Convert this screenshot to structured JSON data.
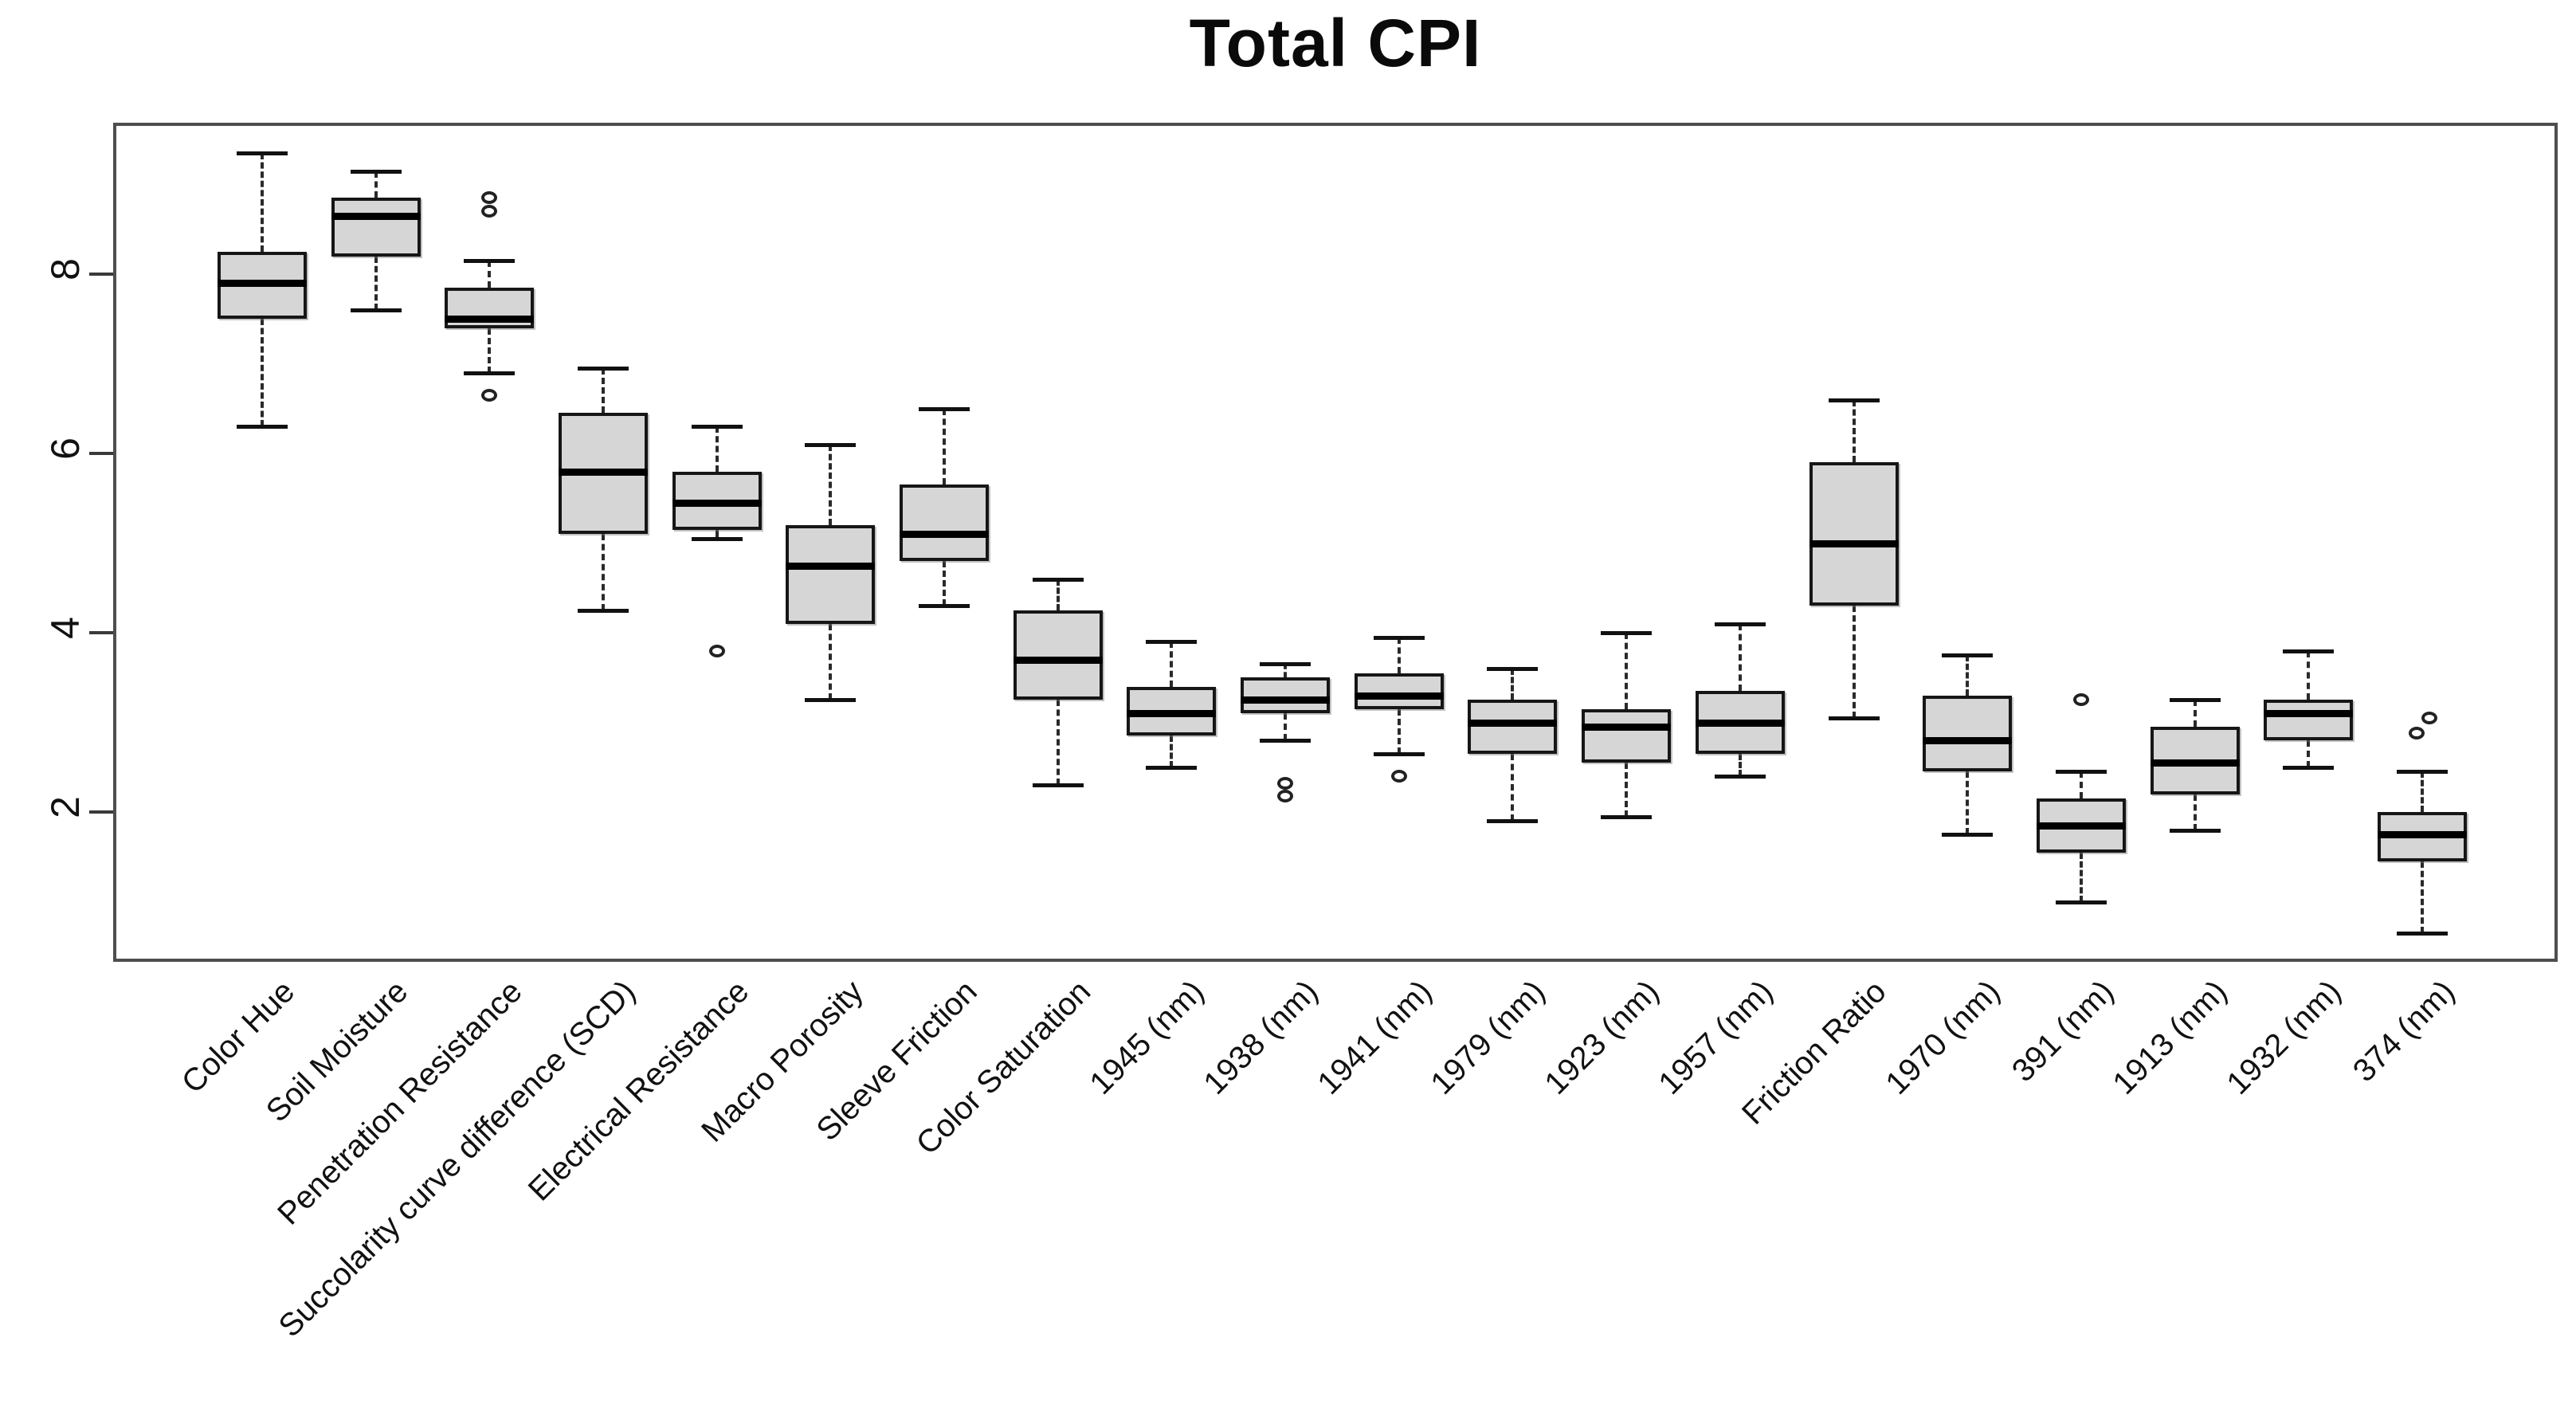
{
  "title": "Total CPI",
  "colors": {
    "box_fill": "#d6d6d6",
    "box_border": "#161616",
    "median": "#000000",
    "frame": "#4e4e4e",
    "whisker": "#2a2a2a",
    "text": "#111111"
  },
  "chart_data": {
    "type": "boxplot",
    "title": "Total CPI",
    "xlabel": "",
    "ylabel": "",
    "ylim": [
      0.4,
      9.7
    ],
    "yticks": [
      2,
      4,
      6,
      8
    ],
    "grid": false,
    "legend": "none",
    "categories": [
      "Color Hue",
      "Soil Moisture",
      "Penetration Resistance",
      "Succolarity curve difference (SCD)",
      "Electrical Resistance",
      "Macro Porosity",
      "Sleeve Friction",
      "Color Saturation",
      "1945 (nm)",
      "1938 (nm)",
      "1941 (nm)",
      "1979 (nm)",
      "1923 (nm)",
      "1957 (nm)",
      "Friction Ratio",
      "1970 (nm)",
      "391 (nm)",
      "1913 (nm)",
      "1932 (nm)",
      "374 (nm)"
    ],
    "series": [
      {
        "name": "Color Hue",
        "whisker_low": 6.3,
        "q1": 7.5,
        "median": 7.9,
        "q3": 8.25,
        "whisker_high": 9.35,
        "outliers": []
      },
      {
        "name": "Soil Moisture",
        "whisker_low": 7.6,
        "q1": 8.2,
        "median": 8.65,
        "q3": 8.85,
        "whisker_high": 9.15,
        "outliers": []
      },
      {
        "name": "Penetration Resistance",
        "whisker_low": 6.9,
        "q1": 7.4,
        "median": 7.5,
        "q3": 7.85,
        "whisker_high": 8.15,
        "outliers": [
          {
            "v": 8.85,
            "dx": 0
          },
          {
            "v": 8.7,
            "dx": 0
          },
          {
            "v": 6.65,
            "dx": 0
          }
        ]
      },
      {
        "name": "Succolarity curve difference (SCD)",
        "whisker_low": 4.25,
        "q1": 5.1,
        "median": 5.8,
        "q3": 6.45,
        "whisker_high": 6.95,
        "outliers": []
      },
      {
        "name": "Electrical Resistance",
        "whisker_low": 5.05,
        "q1": 5.15,
        "median": 5.45,
        "q3": 5.8,
        "whisker_high": 6.3,
        "outliers": [
          {
            "v": 3.8,
            "dx": 0
          }
        ]
      },
      {
        "name": "Macro Porosity",
        "whisker_low": 3.25,
        "q1": 4.1,
        "median": 4.75,
        "q3": 5.2,
        "whisker_high": 6.1,
        "outliers": []
      },
      {
        "name": "Sleeve Friction",
        "whisker_low": 4.3,
        "q1": 4.8,
        "median": 5.1,
        "q3": 5.65,
        "whisker_high": 6.5,
        "outliers": []
      },
      {
        "name": "Color Saturation",
        "whisker_low": 2.3,
        "q1": 3.25,
        "median": 3.7,
        "q3": 4.25,
        "whisker_high": 4.6,
        "outliers": []
      },
      {
        "name": "1945 (nm)",
        "whisker_low": 2.5,
        "q1": 2.85,
        "median": 3.1,
        "q3": 3.4,
        "whisker_high": 3.9,
        "outliers": []
      },
      {
        "name": "1938 (nm)",
        "whisker_low": 2.8,
        "q1": 3.1,
        "median": 3.25,
        "q3": 3.5,
        "whisker_high": 3.65,
        "outliers": [
          {
            "v": 2.32,
            "dx": 0
          },
          {
            "v": 2.18,
            "dx": 0
          }
        ]
      },
      {
        "name": "1941 (nm)",
        "whisker_low": 2.65,
        "q1": 3.15,
        "median": 3.3,
        "q3": 3.55,
        "whisker_high": 3.95,
        "outliers": [
          {
            "v": 2.4,
            "dx": 0
          }
        ]
      },
      {
        "name": "1979 (nm)",
        "whisker_low": 1.9,
        "q1": 2.65,
        "median": 3.0,
        "q3": 3.25,
        "whisker_high": 3.6,
        "outliers": []
      },
      {
        "name": "1923 (nm)",
        "whisker_low": 1.95,
        "q1": 2.55,
        "median": 2.95,
        "q3": 3.15,
        "whisker_high": 4.0,
        "outliers": []
      },
      {
        "name": "1957 (nm)",
        "whisker_low": 2.4,
        "q1": 2.65,
        "median": 3.0,
        "q3": 3.35,
        "whisker_high": 4.1,
        "outliers": []
      },
      {
        "name": "Friction Ratio",
        "whisker_low": 3.05,
        "q1": 4.3,
        "median": 5.0,
        "q3": 5.9,
        "whisker_high": 6.6,
        "outliers": []
      },
      {
        "name": "1970 (nm)",
        "whisker_low": 1.75,
        "q1": 2.45,
        "median": 2.8,
        "q3": 3.3,
        "whisker_high": 3.75,
        "outliers": []
      },
      {
        "name": "391 (nm)",
        "whisker_low": 1.0,
        "q1": 1.55,
        "median": 1.85,
        "q3": 2.15,
        "whisker_high": 2.45,
        "outliers": [
          {
            "v": 3.25,
            "dx": 0
          }
        ]
      },
      {
        "name": "1913 (nm)",
        "whisker_low": 1.8,
        "q1": 2.2,
        "median": 2.55,
        "q3": 2.95,
        "whisker_high": 3.25,
        "outliers": []
      },
      {
        "name": "1932 (nm)",
        "whisker_low": 2.5,
        "q1": 2.8,
        "median": 3.1,
        "q3": 3.25,
        "whisker_high": 3.8,
        "outliers": []
      },
      {
        "name": "374 (nm)",
        "whisker_low": 0.65,
        "q1": 1.45,
        "median": 1.75,
        "q3": 2.0,
        "whisker_high": 2.45,
        "outliers": [
          {
            "v": 3.05,
            "dx": 9
          },
          {
            "v": 2.88,
            "dx": -7
          }
        ]
      }
    ]
  }
}
